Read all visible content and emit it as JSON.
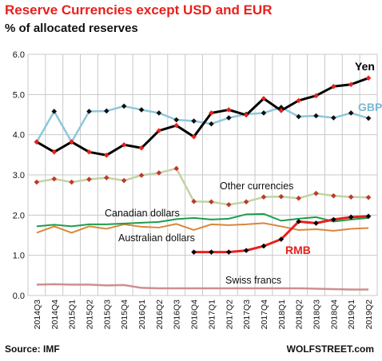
{
  "chart_data": {
    "type": "line",
    "title": "Reserve Currencies  except USD and EUR",
    "subtitle": "% of allocated reserves",
    "source": "Source: IMF",
    "brand": "WOLFSTREET.com",
    "ylim": [
      0,
      6
    ],
    "yticks": [
      "0.0",
      "1.0",
      "2.0",
      "3.0",
      "4.0",
      "5.0",
      "6.0"
    ],
    "grid": true,
    "categories": [
      "2014Q3",
      "2014Q4",
      "2015Q1",
      "2015Q2",
      "2015Q3",
      "2015Q4",
      "2016Q1",
      "2016Q2",
      "2016Q3",
      "2016Q4",
      "2017Q1",
      "2017Q2",
      "2017Q3",
      "2017Q4",
      "2018Q1",
      "2018Q2",
      "2018Q3",
      "2018Q4",
      "2019Q1",
      "2019Q2"
    ],
    "series": [
      {
        "name": "Yen",
        "color": "#000000",
        "marker_color": "#e8201c",
        "marker": "diamond",
        "width": 3,
        "values": [
          3.82,
          3.57,
          3.82,
          3.57,
          3.49,
          3.75,
          3.67,
          4.1,
          4.23,
          3.95,
          4.54,
          4.62,
          4.49,
          4.9,
          4.6,
          4.85,
          4.97,
          5.2,
          5.25,
          5.41
        ]
      },
      {
        "name": "GBP",
        "color": "#8ec7dc",
        "marker_color": "#111111",
        "marker": "diamond",
        "width": 2.5,
        "values": [
          3.82,
          4.58,
          3.82,
          4.58,
          4.59,
          4.71,
          4.62,
          4.54,
          4.37,
          4.34,
          4.27,
          4.42,
          4.51,
          4.54,
          4.68,
          4.45,
          4.47,
          4.42,
          4.54,
          4.41
        ]
      },
      {
        "name": "Other currencies",
        "color": "#c3d2a3",
        "marker_color": "#c0392b",
        "marker": "diamond",
        "width": 2.5,
        "values": [
          2.82,
          2.9,
          2.82,
          2.89,
          2.93,
          2.86,
          2.99,
          3.05,
          3.16,
          2.34,
          2.33,
          2.26,
          2.33,
          2.45,
          2.46,
          2.42,
          2.54,
          2.48,
          2.45,
          2.44
        ]
      },
      {
        "name": "Canadian dollars",
        "color": "#1d9e4a",
        "marker": "none",
        "width": 2,
        "values": [
          1.72,
          1.76,
          1.72,
          1.77,
          1.77,
          1.79,
          1.81,
          1.83,
          1.9,
          1.93,
          1.89,
          1.91,
          2.02,
          2.03,
          1.86,
          1.91,
          1.95,
          1.84,
          1.89,
          1.93
        ]
      },
      {
        "name": "Australian dollars",
        "color": "#d9873a",
        "marker": "none",
        "width": 2,
        "values": [
          1.56,
          1.72,
          1.56,
          1.72,
          1.66,
          1.77,
          1.71,
          1.69,
          1.78,
          1.63,
          1.77,
          1.75,
          1.77,
          1.8,
          1.72,
          1.63,
          1.65,
          1.61,
          1.66,
          1.68
        ]
      },
      {
        "name": "RMB",
        "color": "#e8201c",
        "marker_color": "#000000",
        "marker": "diamond",
        "width": 3,
        "values": [
          null,
          null,
          null,
          null,
          null,
          null,
          null,
          null,
          null,
          1.08,
          1.08,
          1.08,
          1.12,
          1.23,
          1.4,
          1.84,
          1.8,
          1.89,
          1.95,
          1.97
        ]
      },
      {
        "name": "Swiss francs",
        "color": "#cf8f8f",
        "marker": "none",
        "width": 2.5,
        "values": [
          0.27,
          0.28,
          0.27,
          0.27,
          0.25,
          0.26,
          0.19,
          0.18,
          0.18,
          0.18,
          0.18,
          0.18,
          0.18,
          0.18,
          0.18,
          0.18,
          0.17,
          0.16,
          0.15,
          0.15
        ]
      }
    ]
  }
}
